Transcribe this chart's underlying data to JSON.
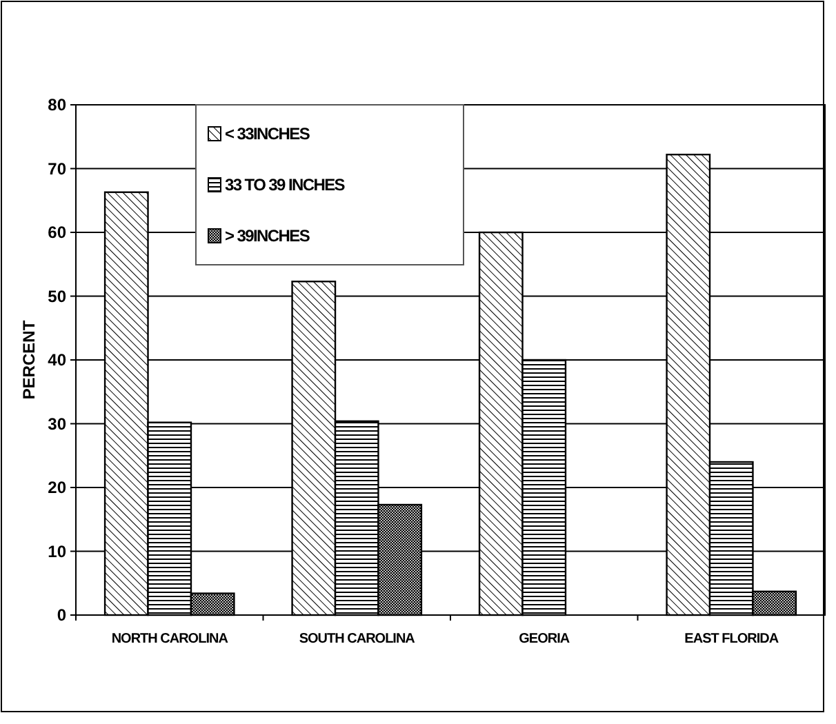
{
  "chart_data": {
    "type": "bar",
    "categories": [
      "NORTH CAROLINA",
      "SOUTH CAROLINA",
      "GEORIA",
      "EAST FLORIDA"
    ],
    "ylabel": "PERCENT",
    "series": [
      {
        "name": "< 33INCHES",
        "color": "#000000",
        "values": [
          66.3,
          52.3,
          60,
          72.2
        ]
      },
      {
        "name": "33 TO 39 INCHES",
        "color": "#000000",
        "values": [
          30.2,
          30.4,
          40,
          24
        ]
      },
      {
        "name": "> 39INCHES",
        "color": "#000000",
        "values": [
          3.4,
          17.3,
          0,
          3.7
        ]
      }
    ],
    "ylim": [
      0,
      80
    ],
    "yticks": [
      0,
      10,
      20,
      30,
      40,
      50,
      60,
      70,
      80
    ],
    "grid": "y",
    "legend": "top left"
  }
}
